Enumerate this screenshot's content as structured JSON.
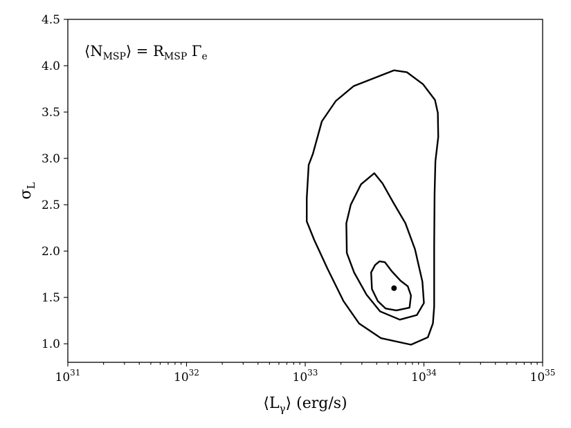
{
  "chart_data": {
    "type": "contour",
    "title": "",
    "annotation": {
      "base": "⟨N",
      "base_sub": "MSP",
      "middle": "⟩ = R",
      "middle_sub": "MSP",
      "end": " Γ",
      "end_sub": "e"
    },
    "xlabel": "⟨L_γ⟩ (erg/s)",
    "xlabel_parts": {
      "pre": "⟨L",
      "sub": "γ",
      "post": "⟩  (erg/s)"
    },
    "ylabel": "σ_L",
    "ylabel_parts": {
      "main": "σ",
      "sub": "L"
    },
    "xscale": "log",
    "xlim": [
      1e+31,
      1e+35
    ],
    "ylim": [
      0.8,
      4.5
    ],
    "x_ticks": [
      {
        "value": 1e+31,
        "base": "10",
        "exp": "31"
      },
      {
        "value": 1e+32,
        "base": "10",
        "exp": "32"
      },
      {
        "value": 1e+33,
        "base": "10",
        "exp": "33"
      },
      {
        "value": 1e+34,
        "base": "10",
        "exp": "34"
      },
      {
        "value": 1e+35,
        "base": "10",
        "exp": "35"
      }
    ],
    "y_ticks": [
      {
        "value": 1.0,
        "label": "1.0"
      },
      {
        "value": 1.5,
        "label": "1.5"
      },
      {
        "value": 2.0,
        "label": "2.0"
      },
      {
        "value": 2.5,
        "label": "2.5"
      },
      {
        "value": 3.0,
        "label": "3.0"
      },
      {
        "value": 3.5,
        "label": "3.5"
      },
      {
        "value": 4.0,
        "label": "4.0"
      },
      {
        "value": 4.5,
        "label": "4.5"
      }
    ],
    "grid": false,
    "best_fit": {
      "x": 5.6e+33,
      "y": 1.6
    },
    "contours": [
      {
        "name": "",
        "points": [
          [
            5.59e+33,
            3.95
          ],
          [
            2.56e+33,
            3.78
          ],
          [
            1.81e+33,
            3.62
          ],
          [
            1.38e+33,
            3.4
          ],
          [
            1.16e+33,
            3.05
          ],
          [
            1.07e+33,
            2.93
          ],
          [
            1.03e+33,
            2.57
          ],
          [
            1.03e+33,
            2.32
          ],
          [
            1.19e+33,
            2.12
          ],
          [
            1.54e+33,
            1.81
          ],
          [
            2.1e+33,
            1.46
          ],
          [
            2.84e+33,
            1.22
          ],
          [
            4.35e+33,
            1.06
          ],
          [
            7.78e+33,
            0.99
          ],
          [
            1.08e+34,
            1.07
          ],
          [
            1.19e+34,
            1.22
          ],
          [
            1.22e+34,
            1.4
          ],
          [
            1.22e+34,
            2.05
          ],
          [
            1.23e+34,
            2.62
          ],
          [
            1.25e+34,
            2.97
          ],
          [
            1.32e+34,
            3.23
          ],
          [
            1.31e+34,
            3.49
          ],
          [
            1.24e+34,
            3.63
          ],
          [
            9.83e+33,
            3.8
          ],
          [
            7.18e+33,
            3.93
          ],
          [
            5.59e+33,
            3.95
          ]
        ]
      },
      {
        "name": "",
        "points": [
          [
            3.82e+33,
            2.84
          ],
          [
            2.95e+33,
            2.72
          ],
          [
            2.42e+33,
            2.5
          ],
          [
            2.22e+33,
            2.3
          ],
          [
            2.24e+33,
            1.98
          ],
          [
            2.58e+33,
            1.77
          ],
          [
            3.28e+33,
            1.53
          ],
          [
            4.27e+33,
            1.35
          ],
          [
            6.27e+33,
            1.26
          ],
          [
            8.72e+33,
            1.31
          ],
          [
            1e+34,
            1.44
          ],
          [
            9.71e+33,
            1.67
          ],
          [
            8.41e+33,
            2.02
          ],
          [
            6.99e+33,
            2.3
          ],
          [
            5.54e+33,
            2.52
          ],
          [
            4.48e+33,
            2.73
          ],
          [
            3.82e+33,
            2.84
          ]
        ]
      },
      {
        "name": "",
        "points": [
          [
            4.23e+33,
            1.89
          ],
          [
            3.88e+33,
            1.85
          ],
          [
            3.59e+33,
            1.77
          ],
          [
            3.65e+33,
            1.59
          ],
          [
            4.09e+33,
            1.46
          ],
          [
            4.76e+33,
            1.38
          ],
          [
            5.86e+33,
            1.36
          ],
          [
            7.56e+33,
            1.39
          ],
          [
            7.78e+33,
            1.52
          ],
          [
            7.31e+33,
            1.62
          ],
          [
            6.35e+33,
            1.68
          ],
          [
            5.38e+33,
            1.78
          ],
          [
            4.69e+33,
            1.88
          ],
          [
            4.23e+33,
            1.89
          ]
        ]
      }
    ]
  }
}
